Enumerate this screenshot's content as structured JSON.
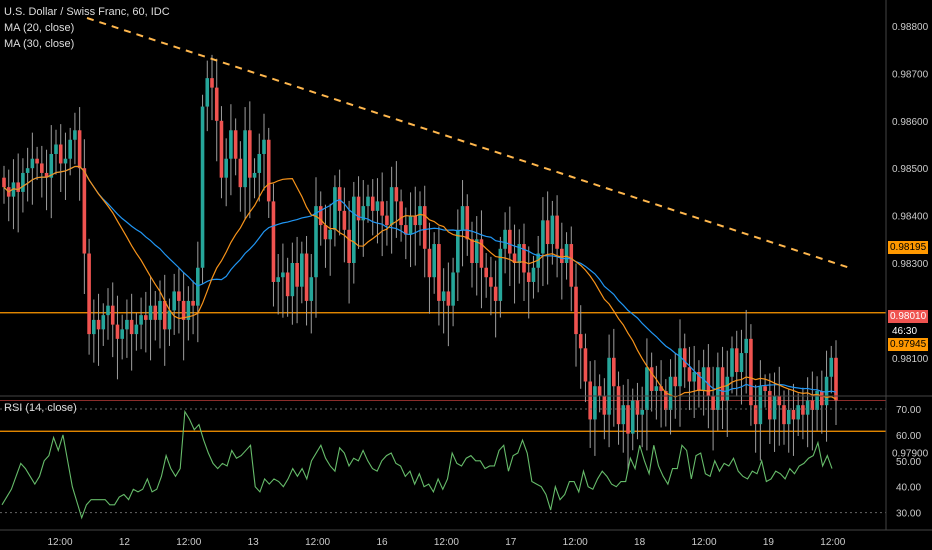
{
  "legend": {
    "title": "U.S. Dollar / Swiss Franc, 60, IDC",
    "ma20": "MA (20, close)",
    "ma30": "MA (30, close)"
  },
  "rsi_label": "RSI (14, close)",
  "badges": {
    "resistance": "0.98195",
    "last": "0.98010",
    "support": "0.97945",
    "countdown": "46:30"
  },
  "colors": {
    "background": "#000000",
    "up": "#26a69a",
    "down": "#ef5350",
    "wick": "#9e9e9e",
    "ma20": "#f7931a",
    "ma30": "#2196f3",
    "level": "#ff9800",
    "trend": "#ffb74d",
    "rsi": "#66bb6a",
    "grid": "#333333"
  },
  "chart_data": [
    {
      "type": "candlestick",
      "title": "U.S. Dollar / Swiss Franc, 60, IDC",
      "x_tick_labels": [
        "12:00",
        "12",
        "12:00",
        "13",
        "12:00",
        "16",
        "12:00",
        "17",
        "12:00",
        "18",
        "12:00",
        "19",
        "12:00"
      ],
      "y_tick_labels": [
        "0.98800",
        "0.98700",
        "0.98600",
        "0.98500",
        "0.98400",
        "0.98300",
        "0.98100",
        "0.97900"
      ],
      "ylim": [
        0.9787,
        0.9888
      ],
      "grid": false,
      "close": [
        0.9846,
        0.9844,
        0.9847,
        0.9845,
        0.9849,
        0.985,
        0.9852,
        0.9851,
        0.9849,
        0.9848,
        0.9853,
        0.9855,
        0.9851,
        0.9852,
        0.9856,
        0.9858,
        0.985,
        0.9832,
        0.9815,
        0.9818,
        0.9816,
        0.9819,
        0.9821,
        0.9817,
        0.9814,
        0.9816,
        0.9818,
        0.9815,
        0.9817,
        0.9819,
        0.9818,
        0.9821,
        0.9818,
        0.9822,
        0.9816,
        0.982,
        0.9824,
        0.9822,
        0.9818,
        0.9822,
        0.9821,
        0.9829,
        0.9863,
        0.9869,
        0.9867,
        0.986,
        0.9848,
        0.9852,
        0.9858,
        0.9852,
        0.9846,
        0.9858,
        0.9848,
        0.9849,
        0.9853,
        0.9856,
        0.9843,
        0.9826,
        0.9827,
        0.9828,
        0.9823,
        0.983,
        0.9825,
        0.9832,
        0.9822,
        0.9827,
        0.9842,
        0.9838,
        0.9835,
        0.9837,
        0.9846,
        0.9841,
        0.9837,
        0.983,
        0.9844,
        0.9839,
        0.9842,
        0.9844,
        0.9841,
        0.9843,
        0.984,
        0.9838,
        0.9846,
        0.9843,
        0.9838,
        0.9836,
        0.984,
        0.9838,
        0.9842,
        0.9833,
        0.9827,
        0.9834,
        0.9822,
        0.9824,
        0.9821,
        0.9828,
        0.9837,
        0.9842,
        0.9835,
        0.983,
        0.9835,
        0.9829,
        0.9827,
        0.9825,
        0.9822,
        0.9833,
        0.9837,
        0.9832,
        0.983,
        0.9834,
        0.9828,
        0.9826,
        0.9829,
        0.9832,
        0.9839,
        0.9834,
        0.984,
        0.9833,
        0.983,
        0.9834,
        0.9825,
        0.9815,
        0.9812,
        0.9805,
        0.9797,
        0.9804,
        0.9802,
        0.9798,
        0.981,
        0.9804,
        0.9796,
        0.98,
        0.9794,
        0.9801,
        0.9798,
        0.9799,
        0.9808,
        0.9803,
        0.9804,
        0.9803,
        0.9799,
        0.9806,
        0.9804,
        0.9812,
        0.9808,
        0.9805,
        0.9807,
        0.9803,
        0.9808,
        0.9802,
        0.9799,
        0.9808,
        0.9801,
        0.9806,
        0.9812,
        0.9807,
        0.9811,
        0.9814,
        0.98,
        0.9796,
        0.9804,
        0.9803,
        0.9797,
        0.9802,
        0.98,
        0.9796,
        0.9799,
        0.9797,
        0.98,
        0.9798,
        0.9801,
        0.9799,
        0.9803,
        0.98,
        0.9806,
        0.981,
        0.9801
      ]
    },
    {
      "type": "line",
      "title": "RSI (14, close)",
      "y_tick_labels": [
        "70.00",
        "60.00",
        "50.00",
        "40.00",
        "30.00"
      ],
      "ylim": [
        26,
        74
      ],
      "values": [
        33,
        36,
        39,
        44,
        49,
        47,
        44,
        41,
        44,
        50,
        52,
        59,
        54,
        60,
        50,
        40,
        34,
        28,
        33,
        35,
        35,
        35,
        35,
        33,
        33,
        36,
        37,
        35,
        39,
        38,
        39,
        43,
        38,
        39,
        44,
        52,
        47,
        44,
        47,
        69,
        66,
        62,
        64,
        58,
        53,
        49,
        47,
        49,
        48,
        54,
        51,
        52,
        54,
        56,
        40,
        38,
        43,
        41,
        43,
        42,
        40,
        43,
        47,
        44,
        47,
        43,
        50,
        53,
        56,
        51,
        48,
        46,
        55,
        53,
        48,
        51,
        50,
        54,
        50,
        47,
        46,
        50,
        52,
        53,
        49,
        48,
        44,
        46,
        41,
        45,
        40,
        41,
        38,
        43,
        39,
        43,
        53,
        49,
        48,
        51,
        52,
        50,
        50,
        47,
        48,
        48,
        54,
        56,
        46,
        52,
        53,
        58,
        53,
        42,
        41,
        40,
        37,
        31,
        40,
        35,
        37,
        42,
        42,
        38,
        46,
        40,
        39,
        43,
        46,
        44,
        41,
        40,
        42,
        42,
        51,
        47,
        56,
        50,
        45,
        56,
        48,
        44,
        41,
        47,
        47,
        56,
        54,
        43,
        52,
        53,
        45,
        44,
        50,
        46,
        49,
        48,
        51,
        46,
        44,
        43,
        46,
        45,
        50,
        42,
        43,
        46,
        45,
        43,
        47,
        45,
        48,
        49,
        51,
        52,
        57,
        48,
        52,
        47
      ]
    }
  ]
}
